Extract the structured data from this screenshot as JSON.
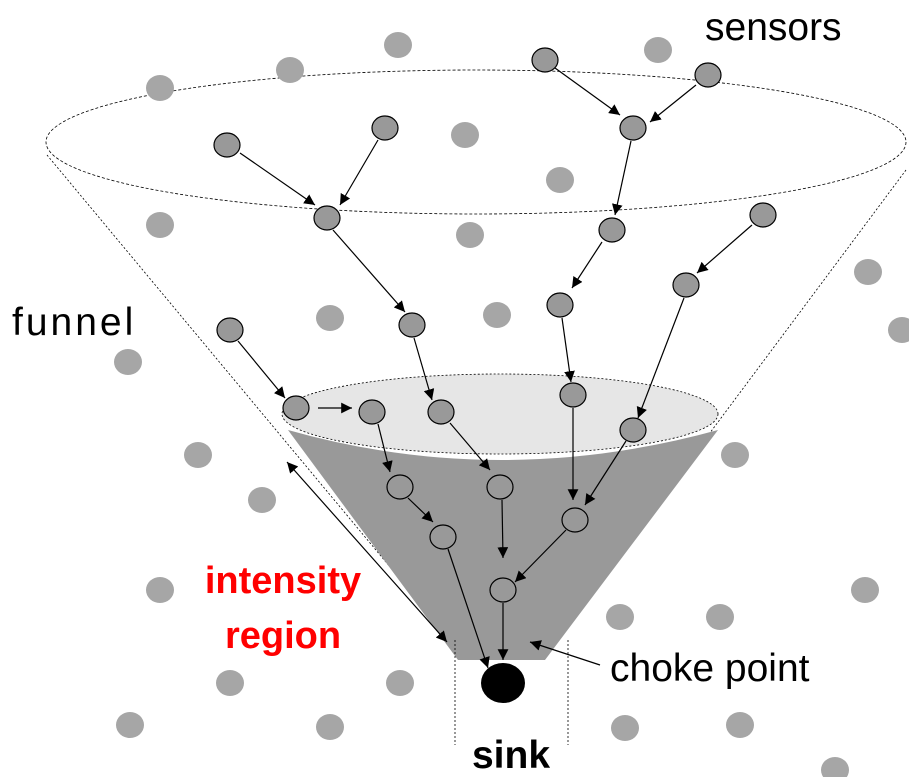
{
  "labels": {
    "sensors": "sensors",
    "funnel": "funnel",
    "intensity_region": [
      "intensity",
      "region"
    ],
    "choke_point": "choke point",
    "sink": "sink"
  }
}
